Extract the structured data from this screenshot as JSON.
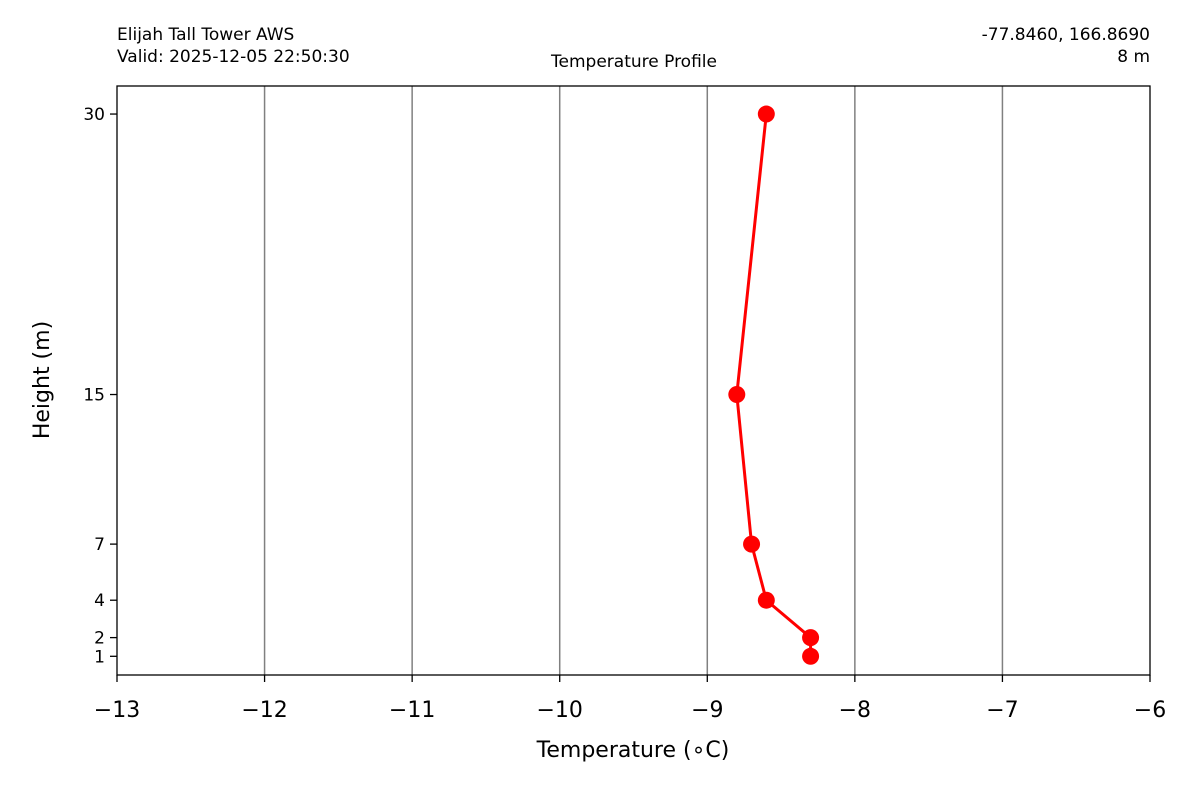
{
  "header": {
    "station": "Elijah Tall Tower AWS",
    "valid": "Valid: 2025-12-05 22:50:30",
    "center_title": "Temperature Profile",
    "coords": "-77.8460, 166.8690",
    "elevation": "8 m"
  },
  "chart_data": {
    "type": "line",
    "title": "Temperature Profile",
    "xlabel": "Temperature (∘C)",
    "ylabel": "Height (m)",
    "xlim": [
      -13,
      -6
    ],
    "ylim": [
      0,
      31.5
    ],
    "x_ticks": [
      -13,
      -12,
      -11,
      -10,
      -9,
      -8,
      -7,
      -6
    ],
    "x_tick_labels": [
      "−13",
      "−12",
      "−11",
      "−10",
      "−9",
      "−8",
      "−7",
      "−6"
    ],
    "y_ticks": [
      1,
      2,
      4,
      7,
      15,
      30
    ],
    "y_tick_labels": [
      "1",
      "2",
      "4",
      "7",
      "15",
      "30"
    ],
    "grid": "vertical",
    "series": [
      {
        "color": "#ff0000",
        "points": [
          {
            "temperature": -8.3,
            "height": 1
          },
          {
            "temperature": -8.3,
            "height": 2
          },
          {
            "temperature": -8.6,
            "height": 4
          },
          {
            "temperature": -8.7,
            "height": 7
          },
          {
            "temperature": -8.8,
            "height": 15
          },
          {
            "temperature": -8.6,
            "height": 30
          }
        ]
      }
    ]
  }
}
